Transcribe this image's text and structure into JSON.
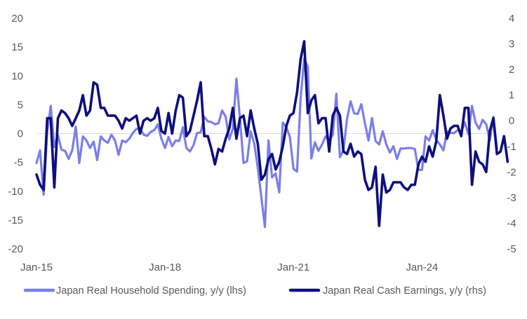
{
  "chart_data": {
    "type": "line",
    "title": "",
    "xlabel": "",
    "ylabel": "",
    "x_tick_labels": [
      {
        "label": "Jan-15",
        "month_index": 0
      },
      {
        "label": "Jan-18",
        "month_index": 36
      },
      {
        "label": "Jan-21",
        "month_index": 72
      },
      {
        "label": "Jan-24",
        "month_index": 108
      }
    ],
    "ylim_left": [
      -20,
      20
    ],
    "yticks_left": [
      "20",
      "15",
      "10",
      "5",
      "0",
      "-5",
      "-10",
      "-15",
      "-20"
    ],
    "ylim_right": [
      -5,
      4
    ],
    "yticks_right": [
      "4",
      "3",
      "2",
      "1",
      "0",
      "-1",
      "-2",
      "-3",
      "-4",
      "-5"
    ],
    "grid": false,
    "legend_position": "bottom",
    "series": [
      {
        "name": "Japan Real Household Spending, y/y (lhs)",
        "axis": "left",
        "color": "#7b7fe8",
        "start_month": "Jan-15",
        "values": [
          -5.1,
          -2.9,
          -10.6,
          0.4,
          4.8,
          -2.3,
          -0.3,
          -2.8,
          -3.0,
          -4.4,
          -2.9,
          1.2,
          -5.1,
          -0.5,
          -1.2,
          -2.5,
          -1.4,
          -4.6,
          -0.5,
          -1.2,
          -1.6,
          -0.2,
          -1.2,
          -3.7,
          -1.2,
          -1.5,
          -0.9,
          0.1,
          0.8,
          0.9,
          -0.2,
          -0.4,
          0.3,
          0.6,
          1.6,
          -0.9,
          -2.5,
          -0.6,
          -2.2,
          -1.2,
          -1.3,
          1.1,
          -2.5,
          -3.1,
          -2.0,
          0.1,
          0.2,
          2.9,
          2.1,
          2.0,
          1.6,
          1.8,
          4.0,
          2.9,
          -1.0,
          0.8,
          9.5,
          2.7,
          -5.1,
          -4.8,
          0.4,
          -1.7,
          -6.0,
          -11.1,
          -16.2,
          -1.2,
          -7.6,
          -6.9,
          -10.2,
          1.9,
          1.1,
          -0.6,
          -6.1,
          -6.6,
          6.2,
          13.0,
          11.6,
          -4.3,
          -1.5,
          -3.0,
          -1.9,
          -0.5,
          -1.2,
          -0.2,
          6.9,
          -4.1,
          -2.9,
          2.5,
          5.6,
          3.5,
          3.4,
          5.1,
          1.8,
          -1.2,
          2.7,
          -1.3,
          -1.9,
          0.4,
          -1.9,
          -3.3,
          -2.2,
          -4.4,
          -2.6,
          -2.6,
          -2.5,
          -2.5,
          -2.7,
          -6.3,
          -6.3,
          -0.5,
          -1.2,
          0.6,
          -1.1,
          -1.9,
          -2.9,
          0.4,
          0.1,
          0.1,
          0.6,
          0.4,
          1.9,
          -0.1,
          4.8,
          1.9,
          0.8,
          2.4,
          1.6,
          -1.2,
          2.9,
          -2.6
        ]
      },
      {
        "name": "Japan Real Cash Earnings, y/y (rhs)",
        "axis": "right",
        "color": "#0d0f7d",
        "start_month": "Jan-15",
        "values": [
          -2.1,
          -2.5,
          -2.7,
          0.1,
          0.1,
          -2.6,
          0.1,
          0.4,
          0.3,
          0.1,
          -0.2,
          0.1,
          0.4,
          1.0,
          0.2,
          0.4,
          1.5,
          1.4,
          0.5,
          0.5,
          0.2,
          0.2,
          0.2,
          0.0,
          -0.3,
          0.1,
          0.0,
          0.1,
          0.2,
          -0.5,
          0.0,
          0.1,
          0.0,
          0.1,
          0.5,
          -0.4,
          -0.5,
          0.3,
          -0.5,
          0.4,
          1.0,
          0.9,
          -0.6,
          -0.4,
          0.2,
          0.8,
          1.5,
          -0.6,
          -0.6,
          -1.1,
          -1.7,
          -1.1,
          -1.2,
          -0.7,
          -0.3,
          0.5,
          -0.7,
          0.1,
          0.2,
          -0.6,
          0.4,
          -0.3,
          -0.9,
          -2.3,
          -2.1,
          -1.5,
          -1.3,
          -1.9,
          -1.6,
          -1.0,
          -0.2,
          0.2,
          0.3,
          1.1,
          2.4,
          3.1,
          0.3,
          0.8,
          1.0,
          -0.1,
          0.1,
          0.1,
          -1.2,
          0.2,
          0.5,
          0.2,
          -1.2,
          -1.3,
          -0.9,
          -1.4,
          -1.2,
          -1.3,
          -2.3,
          -2.7,
          -2.6,
          -1.8,
          -4.1,
          -2.1,
          -2.8,
          -2.7,
          -2.4,
          -2.4,
          -2.4,
          -2.6,
          -2.7,
          -2.5,
          -2.5,
          -1.7,
          -1.4,
          -1.6,
          -1.0,
          -1.4,
          -0.8,
          1.0,
          0.2,
          -0.7,
          -0.3,
          -0.2,
          -0.2,
          -0.6,
          0.5,
          0.5,
          -2.5,
          -1.2,
          -1.6,
          -1.7,
          -2.0,
          -0.4,
          0.1,
          -1.3,
          -1.2,
          -0.6,
          -1.6
        ]
      }
    ]
  }
}
